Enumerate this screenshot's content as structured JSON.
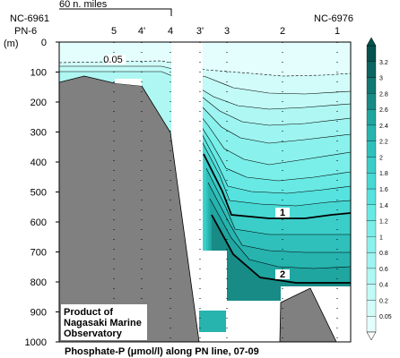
{
  "chart_data": {
    "type": "contour",
    "caption": "Phosphate-P (μmol/l) along PN line, 07-09",
    "scale_label": "60 n. miles",
    "station_ids": {
      "left_top": "NC-6961",
      "left_bottom": "PN-6",
      "right_top": "NC-6976"
    },
    "stations": [
      "5",
      "4'",
      "4",
      "3'",
      "3",
      "2",
      "1"
    ],
    "y_unit": "(m)",
    "y_ticks": [
      "0",
      "100",
      "200",
      "300",
      "400",
      "500",
      "600",
      "700",
      "800",
      "900",
      "1000"
    ],
    "ylim": [
      0,
      1000
    ],
    "depth_axis_inverted": true,
    "contour_labels": [
      "0.05",
      "1",
      "2"
    ],
    "colorbar": {
      "ticks": [
        "0.05",
        "0.2",
        "0.4",
        "0.6",
        "0.8",
        "1",
        "1.2",
        "1.4",
        "1.6",
        "1.8",
        "2",
        "2.2",
        "2.4",
        "2.6",
        "2.8",
        "3",
        "3.2"
      ],
      "colors": [
        "#e3fefd",
        "#d2fcf9",
        "#c1faf6",
        "#aff7f3",
        "#9ef4f0",
        "#8bf1ec",
        "#7aeee8",
        "#68e9e4",
        "#56e2de",
        "#47d8d3",
        "#3bcdc8",
        "#30c0bb",
        "#27b3ae",
        "#1fa6a1",
        "#188b86",
        "#117873",
        "#0b6560",
        "#06524e"
      ]
    },
    "credit": [
      "Product of",
      "Nagasaki Marine",
      "Observatory"
    ]
  }
}
